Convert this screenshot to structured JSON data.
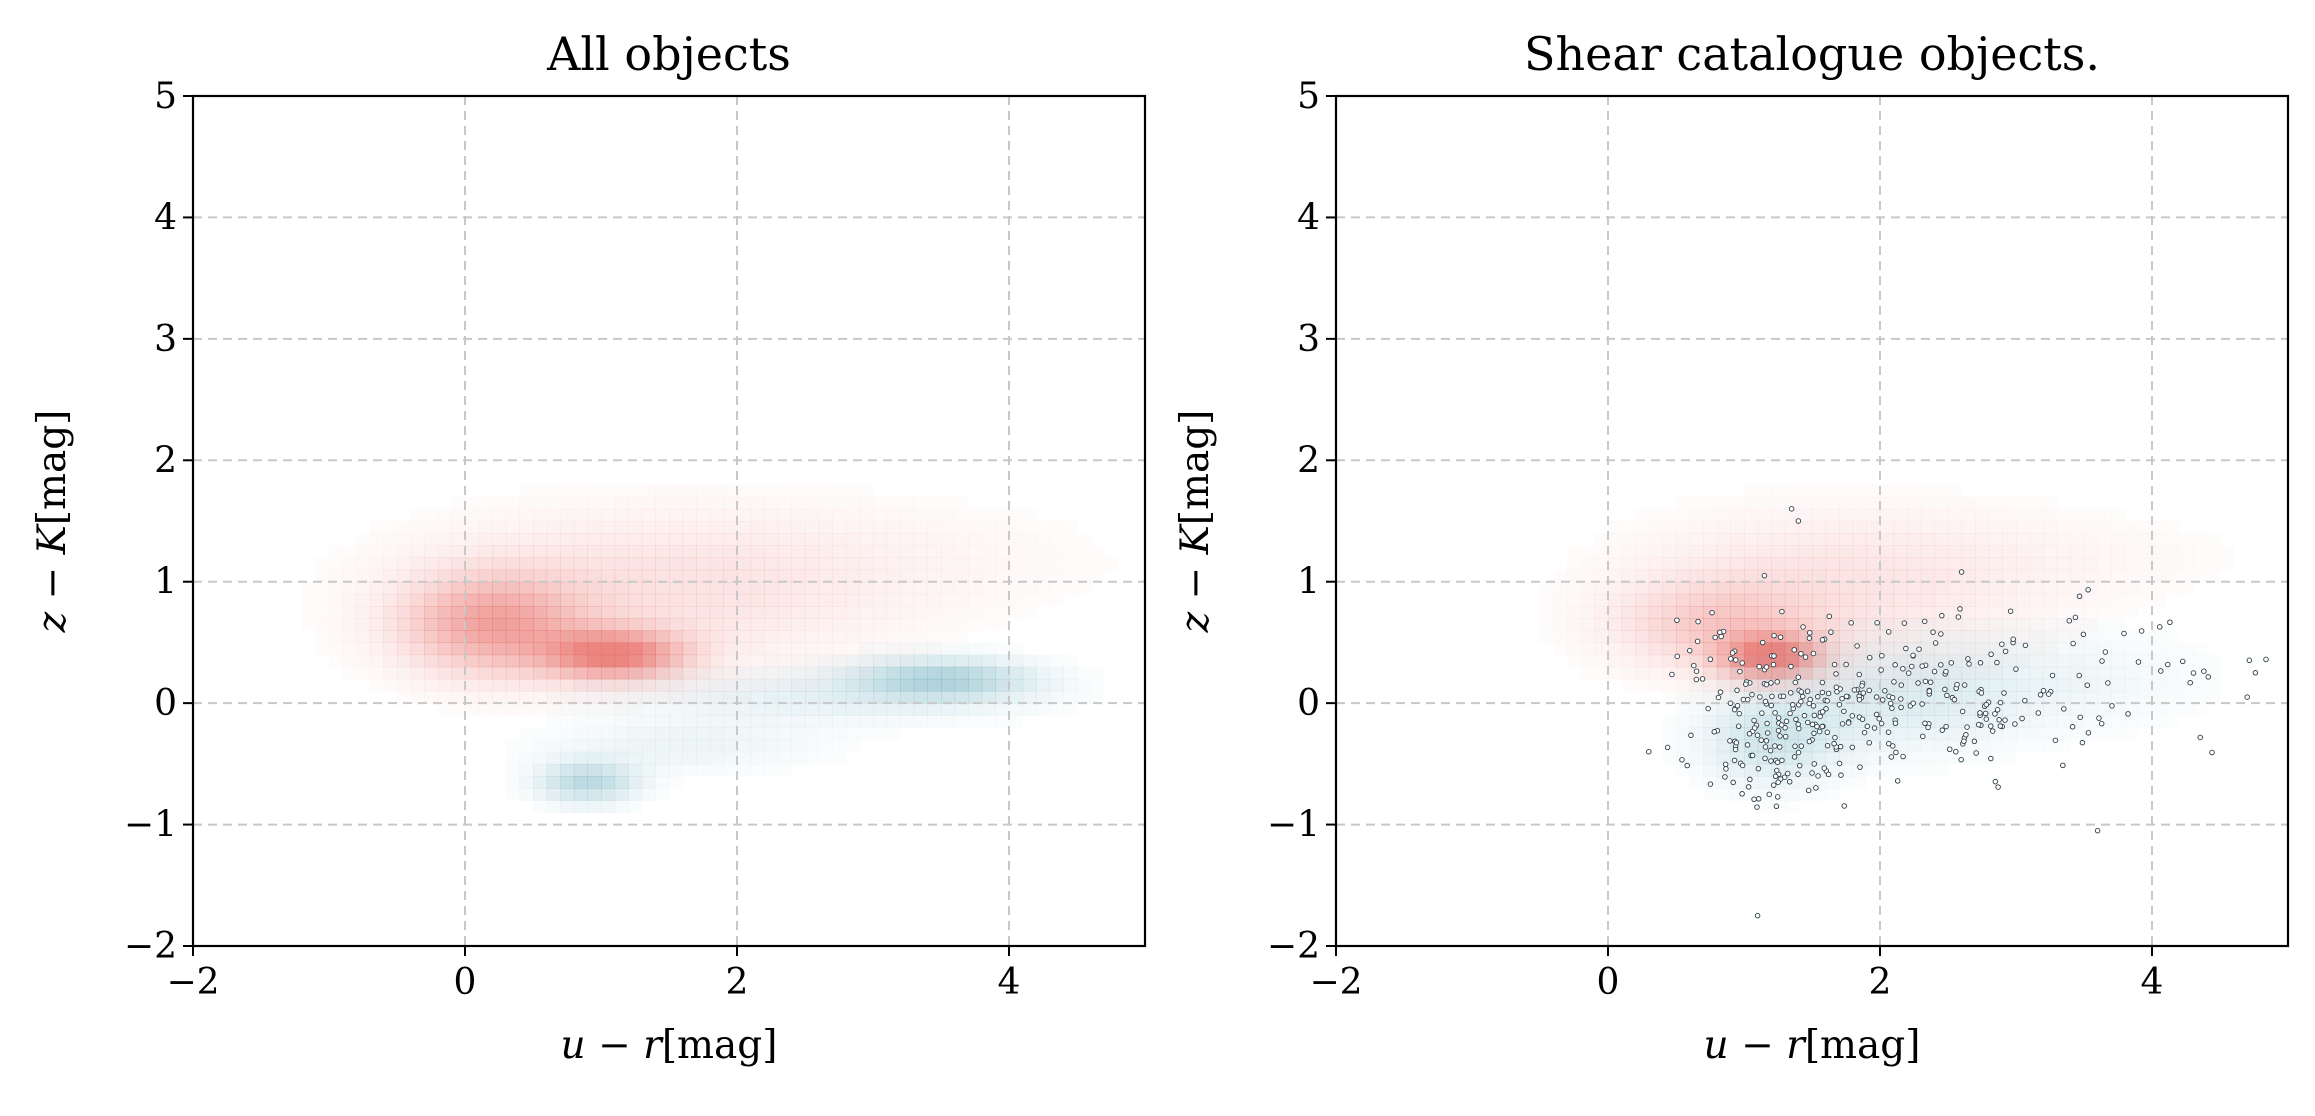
{
  "chart_data": [
    {
      "type": "heatmap",
      "title": "All objects",
      "xlabel": {
        "var1": "u",
        "minus": "−",
        "var2": "r",
        "unit": "[mag]"
      },
      "ylabel": {
        "var1": "z",
        "minus": "−",
        "var2": "K",
        "unit": "[mag]"
      },
      "xlim": [
        -2,
        5
      ],
      "ylim": [
        -2,
        5
      ],
      "xticks": [
        {
          "v": -2,
          "label": "−2"
        },
        {
          "v": 0,
          "label": "0"
        },
        {
          "v": 2,
          "label": "2"
        },
        {
          "v": 4,
          "label": "4"
        }
      ],
      "yticks": [
        {
          "v": -2,
          "label": "−2"
        },
        {
          "v": -1,
          "label": "−1"
        },
        {
          "v": 0,
          "label": "0"
        },
        {
          "v": 1,
          "label": "1"
        },
        {
          "v": 2,
          "label": "2"
        },
        {
          "v": 3,
          "label": "3"
        },
        {
          "v": 4,
          "label": "4"
        },
        {
          "v": 5,
          "label": "5"
        }
      ],
      "grid": true,
      "bin_size": 0.1,
      "densities": [
        {
          "name": "red",
          "color": "#e8706a",
          "components": [
            {
              "x": 0.2,
              "y": 0.65,
              "sx": 0.45,
              "sy": 0.28,
              "amp": 0.55
            },
            {
              "x": 1.1,
              "y": 0.4,
              "sx": 0.35,
              "sy": 0.14,
              "amp": 0.8
            },
            {
              "x": 1.3,
              "y": 0.9,
              "sx": 1.2,
              "sy": 0.45,
              "amp": 0.18
            },
            {
              "x": 3.0,
              "y": 1.2,
              "sx": 1.4,
              "sy": 0.35,
              "amp": 0.05
            }
          ]
        },
        {
          "name": "blue",
          "color": "#6faebe",
          "components": [
            {
              "x": 3.5,
              "y": 0.2,
              "sx": 0.45,
              "sy": 0.12,
              "amp": 0.5
            },
            {
              "x": 2.6,
              "y": 0.05,
              "sx": 1.0,
              "sy": 0.15,
              "amp": 0.16
            },
            {
              "x": 0.9,
              "y": -0.65,
              "sx": 0.25,
              "sy": 0.12,
              "amp": 0.45
            },
            {
              "x": 1.6,
              "y": -0.35,
              "sx": 0.7,
              "sy": 0.15,
              "amp": 0.12
            }
          ]
        }
      ]
    },
    {
      "type": "heatmap",
      "title": "Shear catalogue objects.",
      "xlabel": {
        "var1": "u",
        "minus": "−",
        "var2": "r",
        "unit": "[mag]"
      },
      "ylabel": {
        "var1": "z",
        "minus": "−",
        "var2": "K",
        "unit": "[mag]"
      },
      "xlim": [
        -2,
        5
      ],
      "ylim": [
        -2,
        5
      ],
      "xticks": [
        {
          "v": -2,
          "label": "−2"
        },
        {
          "v": 0,
          "label": "0"
        },
        {
          "v": 2,
          "label": "2"
        },
        {
          "v": 4,
          "label": "4"
        }
      ],
      "yticks": [
        {
          "v": -2,
          "label": "−2"
        },
        {
          "v": -1,
          "label": "−1"
        },
        {
          "v": 0,
          "label": "0"
        },
        {
          "v": 1,
          "label": "1"
        },
        {
          "v": 2,
          "label": "2"
        },
        {
          "v": 3,
          "label": "3"
        },
        {
          "v": 4,
          "label": "4"
        },
        {
          "v": 5,
          "label": "5"
        }
      ],
      "grid": true,
      "bin_size": 0.1,
      "densities": [
        {
          "name": "red",
          "color": "#e8706a",
          "components": [
            {
              "x": 1.2,
              "y": 0.38,
              "sx": 0.25,
              "sy": 0.13,
              "amp": 0.8
            },
            {
              "x": 0.8,
              "y": 0.65,
              "sx": 0.5,
              "sy": 0.25,
              "amp": 0.28
            },
            {
              "x": 1.6,
              "y": 0.9,
              "sx": 1.0,
              "sy": 0.45,
              "amp": 0.16
            },
            {
              "x": 3.0,
              "y": 1.2,
              "sx": 1.3,
              "sy": 0.3,
              "amp": 0.05
            }
          ]
        },
        {
          "name": "blue",
          "color": "#6faebe",
          "components": [
            {
              "x": 1.2,
              "y": -0.3,
              "sx": 0.35,
              "sy": 0.25,
              "amp": 0.3
            },
            {
              "x": 2.1,
              "y": 0.05,
              "sx": 0.6,
              "sy": 0.3,
              "amp": 0.2
            },
            {
              "x": 3.2,
              "y": 0.2,
              "sx": 0.8,
              "sy": 0.3,
              "amp": 0.1
            }
          ]
        }
      ],
      "scatter_clusters": [
        {
          "x": 1.2,
          "y": -0.3,
          "sx": 0.3,
          "sy": 0.28,
          "n": 120
        },
        {
          "x": 2.0,
          "y": 0.0,
          "sx": 0.55,
          "sy": 0.3,
          "n": 170
        },
        {
          "x": 3.2,
          "y": 0.2,
          "sx": 0.7,
          "sy": 0.3,
          "n": 80
        },
        {
          "x": 1.0,
          "y": 0.4,
          "sx": 0.35,
          "sy": 0.2,
          "n": 40
        }
      ],
      "scatter_extra": [
        {
          "x": 1.1,
          "y": -1.75
        },
        {
          "x": 1.4,
          "y": 1.5
        },
        {
          "x": 1.35,
          "y": 1.6
        },
        {
          "x": 1.15,
          "y": 1.05
        },
        {
          "x": 3.6,
          "y": -1.05
        },
        {
          "x": 4.7,
          "y": 0.05
        },
        {
          "x": 0.3,
          "y": -0.4
        },
        {
          "x": 2.6,
          "y": 1.08
        }
      ]
    }
  ]
}
